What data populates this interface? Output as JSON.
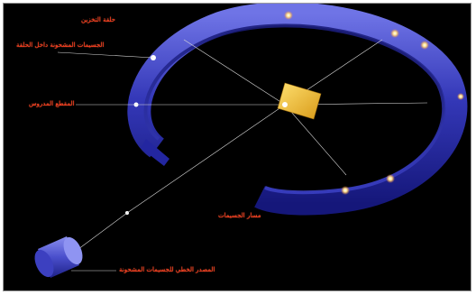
{
  "colors": {
    "background": "#000000",
    "ring": "#2b2fa6",
    "ring_highlight": "#6f74e6",
    "label_text": "#ff3b1f",
    "leader_line": "#d9d9d9",
    "marker": "#ffe08a",
    "target": "#f2c230",
    "source": "#5a5fd0"
  },
  "labels": {
    "top_title": "حلقة التخزين",
    "top_subtitle": "الجسيمات المشحونة داخل الحلقة",
    "center": "المقطع المدروس",
    "middle": "مسار الجسيمات",
    "bottom": "المصدر الخطي للجسيمات المشحونة"
  },
  "icons": [
    "ring-icon",
    "target-plate-icon",
    "source-cylinder-icon"
  ]
}
